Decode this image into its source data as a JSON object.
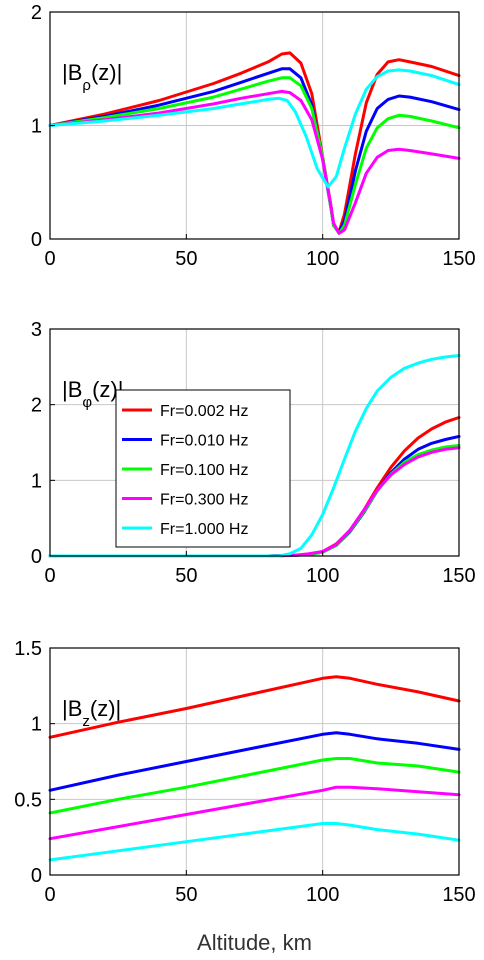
{
  "chart_data": [
    {
      "type": "line",
      "panel_label": {
        "main": "|B",
        "sub": "ρ",
        "tail": "(z)|"
      },
      "xlim": [
        0,
        150
      ],
      "ylim": [
        0,
        2
      ],
      "xticks": [
        0,
        50,
        100,
        150
      ],
      "yticks": [
        0,
        1,
        2
      ],
      "xtick_labels": [
        "0",
        "50",
        "100",
        "150"
      ],
      "ytick_labels": [
        "0",
        "1",
        "2"
      ],
      "grid": true,
      "series": [
        {
          "color": "#ff0000",
          "x": [
            0,
            20,
            40,
            60,
            70,
            80,
            85,
            88,
            92,
            96,
            100,
            103,
            104,
            106,
            108,
            112,
            116,
            120,
            124,
            128,
            132,
            140,
            150
          ],
          "y": [
            1.0,
            1.1,
            1.22,
            1.37,
            1.46,
            1.56,
            1.63,
            1.64,
            1.55,
            1.28,
            0.72,
            0.3,
            0.12,
            0.06,
            0.22,
            0.75,
            1.2,
            1.45,
            1.56,
            1.58,
            1.56,
            1.52,
            1.44
          ]
        },
        {
          "color": "#0000ff",
          "x": [
            0,
            20,
            40,
            60,
            70,
            80,
            85,
            88,
            92,
            96,
            100,
            103,
            104,
            106,
            108,
            112,
            116,
            120,
            124,
            128,
            132,
            140,
            150
          ],
          "y": [
            1.0,
            1.08,
            1.18,
            1.3,
            1.38,
            1.46,
            1.5,
            1.5,
            1.42,
            1.18,
            0.7,
            0.28,
            0.12,
            0.06,
            0.16,
            0.6,
            0.95,
            1.15,
            1.23,
            1.26,
            1.25,
            1.21,
            1.14
          ]
        },
        {
          "color": "#00ff00",
          "x": [
            0,
            20,
            40,
            60,
            70,
            80,
            85,
            88,
            92,
            96,
            100,
            103,
            104,
            106,
            108,
            112,
            116,
            120,
            124,
            128,
            132,
            140,
            150
          ],
          "y": [
            1.0,
            1.07,
            1.15,
            1.25,
            1.32,
            1.39,
            1.42,
            1.42,
            1.35,
            1.15,
            0.72,
            0.28,
            0.12,
            0.05,
            0.12,
            0.48,
            0.8,
            0.98,
            1.06,
            1.09,
            1.08,
            1.04,
            0.98
          ]
        },
        {
          "color": "#ff00ff",
          "x": [
            0,
            20,
            40,
            60,
            70,
            80,
            85,
            88,
            92,
            96,
            100,
            103,
            104,
            106,
            108,
            112,
            116,
            120,
            124,
            128,
            132,
            140,
            150
          ],
          "y": [
            1.0,
            1.05,
            1.11,
            1.19,
            1.24,
            1.28,
            1.3,
            1.29,
            1.22,
            1.05,
            0.7,
            0.3,
            0.14,
            0.05,
            0.08,
            0.32,
            0.58,
            0.72,
            0.78,
            0.79,
            0.78,
            0.75,
            0.71
          ]
        },
        {
          "color": "#00ffff",
          "x": [
            0,
            20,
            40,
            60,
            70,
            80,
            84,
            87,
            90,
            94,
            98,
            102,
            105,
            108,
            112,
            116,
            120,
            124,
            128,
            132,
            140,
            150
          ],
          "y": [
            1.0,
            1.04,
            1.09,
            1.15,
            1.19,
            1.23,
            1.24,
            1.22,
            1.12,
            0.9,
            0.62,
            0.46,
            0.55,
            0.8,
            1.1,
            1.32,
            1.43,
            1.48,
            1.49,
            1.48,
            1.44,
            1.36
          ]
        }
      ]
    },
    {
      "type": "line",
      "panel_label": {
        "main": "|B",
        "sub": "φ",
        "tail": "(z)|"
      },
      "xlim": [
        0,
        150
      ],
      "ylim": [
        0,
        3
      ],
      "xticks": [
        0,
        50,
        100,
        150
      ],
      "yticks": [
        0,
        1,
        2,
        3
      ],
      "xtick_labels": [
        "0",
        "50",
        "100",
        "150"
      ],
      "ytick_labels": [
        "0",
        "1",
        "2",
        "3"
      ],
      "grid": true,
      "legend": {
        "placement": "center-left",
        "entries": [
          "Fr=0.002 Hz",
          "Fr=0.010 Hz",
          "Fr=0.100 Hz",
          "Fr=0.300 Hz",
          "Fr=1.000 Hz"
        ]
      },
      "series": [
        {
          "name": "Fr=0.002 Hz",
          "color": "#ff0000",
          "x": [
            0,
            80,
            90,
            95,
            100,
            105,
            110,
            115,
            120,
            125,
            130,
            135,
            140,
            145,
            150
          ],
          "y": [
            0,
            0,
            0.01,
            0.02,
            0.06,
            0.16,
            0.34,
            0.6,
            0.9,
            1.17,
            1.39,
            1.56,
            1.68,
            1.77,
            1.83
          ]
        },
        {
          "name": "Fr=0.010 Hz",
          "color": "#0000ff",
          "x": [
            0,
            80,
            90,
            95,
            100,
            105,
            110,
            115,
            120,
            125,
            130,
            135,
            140,
            145,
            150
          ],
          "y": [
            0,
            0,
            0.01,
            0.02,
            0.05,
            0.14,
            0.32,
            0.57,
            0.86,
            1.1,
            1.28,
            1.41,
            1.49,
            1.54,
            1.58
          ]
        },
        {
          "name": "Fr=0.100 Hz",
          "color": "#00ff00",
          "x": [
            0,
            80,
            90,
            95,
            100,
            105,
            110,
            115,
            120,
            125,
            130,
            135,
            140,
            145,
            150
          ],
          "y": [
            0,
            0,
            0.01,
            0.02,
            0.05,
            0.14,
            0.33,
            0.58,
            0.86,
            1.08,
            1.24,
            1.34,
            1.4,
            1.44,
            1.46
          ]
        },
        {
          "name": "Fr=0.300 Hz",
          "color": "#ff00ff",
          "x": [
            0,
            80,
            90,
            95,
            100,
            105,
            110,
            115,
            120,
            125,
            130,
            135,
            140,
            145,
            150
          ],
          "y": [
            0,
            0,
            0.01,
            0.03,
            0.06,
            0.15,
            0.34,
            0.6,
            0.87,
            1.07,
            1.21,
            1.31,
            1.37,
            1.41,
            1.43
          ]
        },
        {
          "name": "Fr=1.000 Hz",
          "color": "#00ffff",
          "x": [
            0,
            84,
            88,
            92,
            96,
            100,
            104,
            108,
            112,
            116,
            120,
            125,
            130,
            135,
            140,
            145,
            150
          ],
          "y": [
            0,
            0,
            0.03,
            0.1,
            0.28,
            0.55,
            0.9,
            1.28,
            1.65,
            1.95,
            2.18,
            2.36,
            2.48,
            2.55,
            2.6,
            2.63,
            2.65
          ]
        }
      ]
    },
    {
      "type": "line",
      "panel_label": {
        "main": "|B",
        "sub": "z",
        "tail": "(z)|"
      },
      "xlim": [
        0,
        150
      ],
      "ylim": [
        0,
        1.5
      ],
      "xticks": [
        0,
        50,
        100,
        150
      ],
      "yticks": [
        0,
        0.5,
        1,
        1.5
      ],
      "xtick_labels": [
        "0",
        "50",
        "100",
        "150"
      ],
      "ytick_labels": [
        "0",
        "0.5",
        "1",
        "1.5"
      ],
      "grid": true,
      "xlabel": "Altitude,   km",
      "series": [
        {
          "color": "#ff0000",
          "x": [
            0,
            25,
            50,
            75,
            100,
            105,
            110,
            120,
            135,
            150
          ],
          "y": [
            0.91,
            1.01,
            1.1,
            1.2,
            1.3,
            1.31,
            1.3,
            1.26,
            1.21,
            1.15
          ]
        },
        {
          "color": "#0000ff",
          "x": [
            0,
            25,
            50,
            75,
            100,
            105,
            110,
            120,
            135,
            150
          ],
          "y": [
            0.56,
            0.66,
            0.75,
            0.84,
            0.93,
            0.94,
            0.93,
            0.9,
            0.87,
            0.83
          ]
        },
        {
          "color": "#00ff00",
          "x": [
            0,
            25,
            50,
            75,
            100,
            105,
            110,
            120,
            135,
            150
          ],
          "y": [
            0.41,
            0.5,
            0.58,
            0.67,
            0.76,
            0.77,
            0.77,
            0.74,
            0.72,
            0.68
          ]
        },
        {
          "color": "#ff00ff",
          "x": [
            0,
            25,
            50,
            75,
            100,
            105,
            110,
            120,
            135,
            150
          ],
          "y": [
            0.24,
            0.32,
            0.4,
            0.48,
            0.56,
            0.58,
            0.58,
            0.57,
            0.55,
            0.53
          ]
        },
        {
          "color": "#00ffff",
          "x": [
            0,
            25,
            50,
            75,
            100,
            105,
            110,
            120,
            135,
            150
          ],
          "y": [
            0.1,
            0.16,
            0.22,
            0.28,
            0.34,
            0.34,
            0.33,
            0.3,
            0.27,
            0.23
          ]
        }
      ]
    }
  ]
}
